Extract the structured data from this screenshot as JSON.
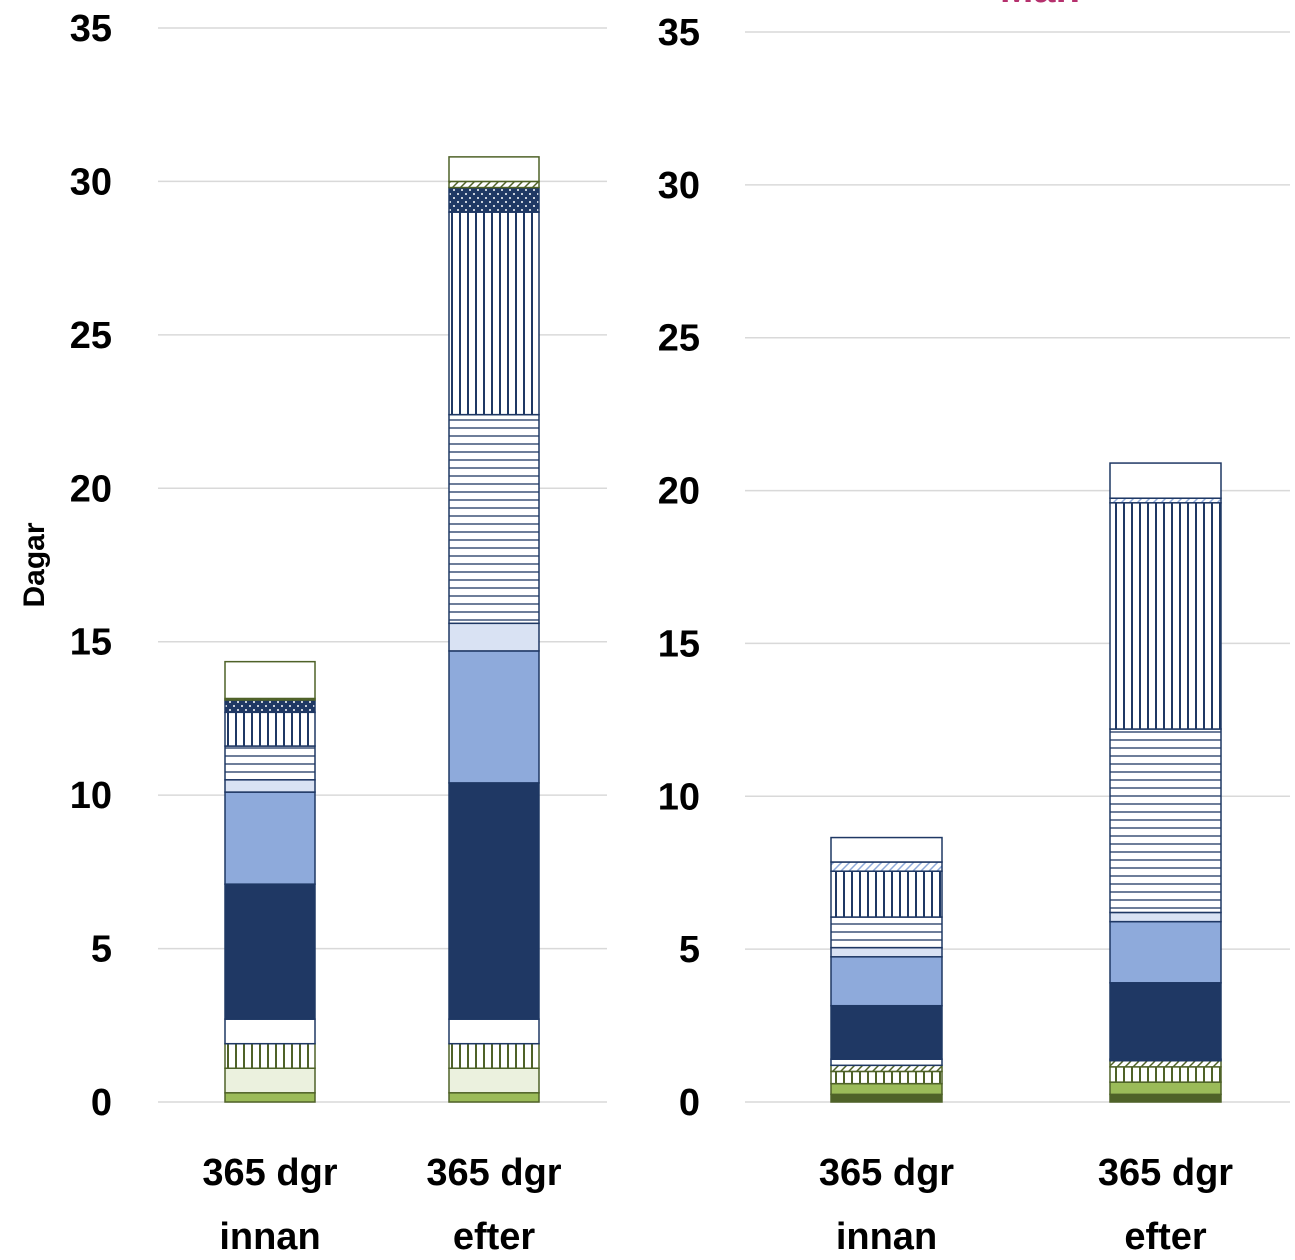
{
  "chart_data": [
    {
      "type": "bar",
      "stacked": true,
      "ylabel": "Dagar",
      "categories": [
        "365 dgr innan",
        "365 dgr efter"
      ],
      "ylim": [
        0,
        35
      ],
      "yticks": [
        0,
        5,
        10,
        15,
        20,
        25,
        30,
        35
      ],
      "grid": true,
      "series": [
        {
          "color": "#9bbb59",
          "edgecolor": "#4f6228",
          "values": [
            0.3,
            0.3
          ]
        },
        {
          "color": "#ebf1de",
          "edgecolor": "#4f6228",
          "values": [
            0.8,
            0.8
          ]
        },
        {
          "color": "#4f6228",
          "pattern": "vertical",
          "edgecolor": "#4f6228",
          "values": [
            0.8,
            0.8
          ]
        },
        {
          "color": "#ffffff",
          "edgecolor": "#1f3864",
          "values": [
            0.8,
            0.8
          ]
        },
        {
          "color": "#1f3864",
          "edgecolor": "#1f3864",
          "values": [
            4.4,
            7.7
          ]
        },
        {
          "color": "#8eaadb",
          "edgecolor": "#1f3864",
          "values": [
            3.0,
            4.3
          ]
        },
        {
          "color": "#d9e2f3",
          "edgecolor": "#1f3864",
          "values": [
            0.4,
            0.9
          ]
        },
        {
          "color": "#1f3864",
          "pattern": "horizontal",
          "edgecolor": "#1f3864",
          "values": [
            1.1,
            6.8
          ]
        },
        {
          "color": "#1f3864",
          "pattern": "vertical",
          "edgecolor": "#1f3864",
          "values": [
            1.1,
            6.6
          ]
        },
        {
          "color": "#1f3864",
          "pattern": "dots",
          "edgecolor": "#1f3864",
          "values": [
            0.4,
            0.8
          ]
        },
        {
          "color": "#4f6228",
          "pattern": "diagonal",
          "edgecolor": "#4f6228",
          "values": [
            0.05,
            0.2
          ]
        },
        {
          "color": "#ffffff",
          "edgecolor": "#4f6228",
          "values": [
            1.2,
            0.8
          ]
        }
      ]
    },
    {
      "type": "bar",
      "stacked": true,
      "title": "Män",
      "title_color": "#b5306d",
      "categories": [
        "365 dgr innan",
        "365 dgr efter"
      ],
      "ylim": [
        0,
        35
      ],
      "yticks": [
        0,
        5,
        10,
        15,
        20,
        25,
        30,
        35
      ],
      "grid": true,
      "series": [
        {
          "color": "#4f6228",
          "edgecolor": "#4f6228",
          "values": [
            0.25,
            0.25
          ]
        },
        {
          "color": "#9bbb59",
          "edgecolor": "#4f6228",
          "values": [
            0.35,
            0.4
          ]
        },
        {
          "color": "#4f6228",
          "pattern": "vertical",
          "edgecolor": "#4f6228",
          "values": [
            0.4,
            0.5
          ]
        },
        {
          "color": "#4f6228",
          "pattern": "diagonal",
          "edgecolor": "#4f6228",
          "values": [
            0.2,
            0.2
          ]
        },
        {
          "color": "#ffffff",
          "edgecolor": "#1f3864",
          "values": [
            0.2,
            0.05
          ]
        },
        {
          "color": "#1f3864",
          "edgecolor": "#1f3864",
          "values": [
            1.75,
            2.5
          ]
        },
        {
          "color": "#8eaadb",
          "edgecolor": "#1f3864",
          "values": [
            1.6,
            2.0
          ]
        },
        {
          "color": "#d9e2f3",
          "edgecolor": "#1f3864",
          "values": [
            0.3,
            0.3
          ]
        },
        {
          "color": "#1f3864",
          "pattern": "horizontal",
          "edgecolor": "#1f3864",
          "values": [
            1.0,
            6.0
          ]
        },
        {
          "color": "#1f3864",
          "pattern": "vertical",
          "edgecolor": "#1f3864",
          "values": [
            1.5,
            7.4
          ]
        },
        {
          "color": "#8eaadb",
          "pattern": "diagonal",
          "edgecolor": "#1f3864",
          "values": [
            0.3,
            0.15
          ]
        },
        {
          "color": "#ffffff",
          "edgecolor": "#1f3864",
          "values": [
            0.8,
            1.15
          ]
        }
      ]
    }
  ]
}
